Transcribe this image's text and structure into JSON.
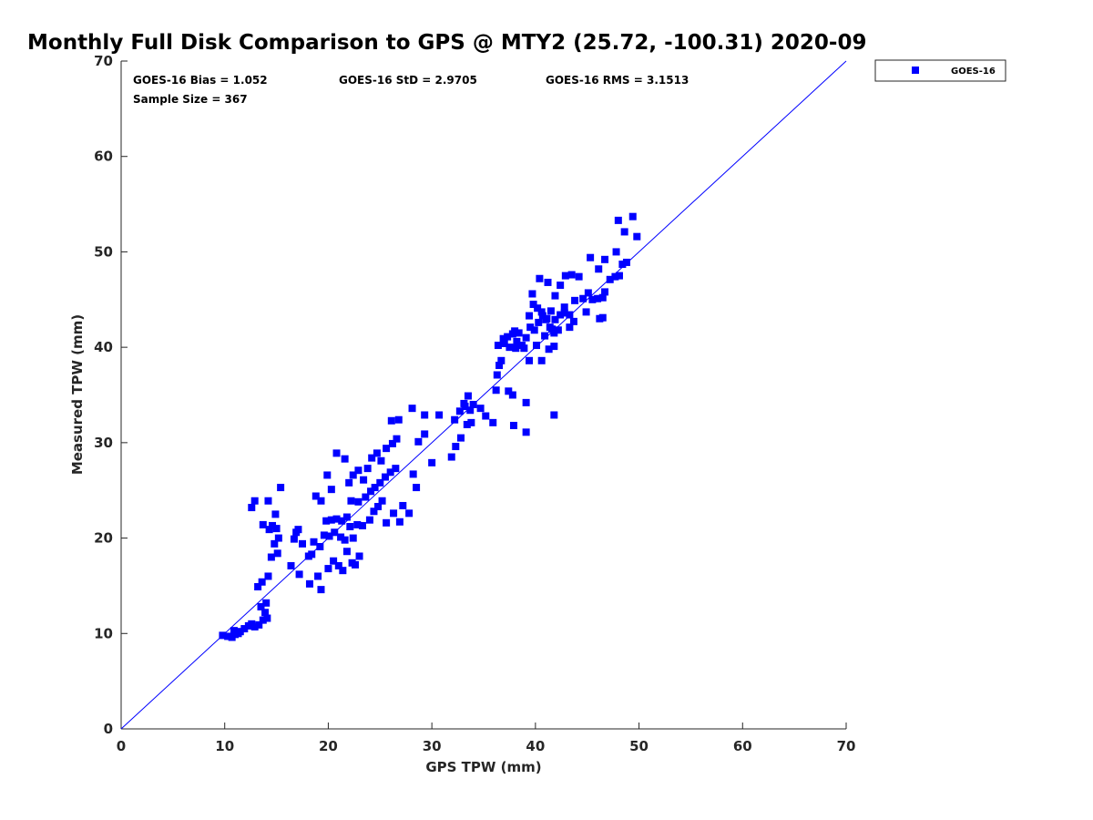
{
  "chart_data": {
    "type": "scatter",
    "title": "Monthly Full Disk Comparison to GPS @ MTY2 (25.72, -100.31) 2020-09",
    "xlabel": "GPS TPW (mm)",
    "ylabel": "Measured TPW (mm)",
    "xlim": [
      0,
      70
    ],
    "ylim": [
      0,
      70
    ],
    "xticks": [
      "0",
      "10",
      "20",
      "30",
      "40",
      "50",
      "60",
      "70"
    ],
    "yticks": [
      "0",
      "10",
      "20",
      "30",
      "40",
      "50",
      "60",
      "70"
    ],
    "grid": false,
    "legend_position": "top-right",
    "stats": {
      "bias": "GOES-16 Bias = 1.052",
      "std": "GOES-16 StD = 2.9705",
      "rms": "GOES-16 RMS = 3.1513",
      "sample": "Sample Size = 367"
    },
    "reference_line": {
      "x": [
        0,
        70
      ],
      "y": [
        0,
        70
      ],
      "color": "#0000ff"
    },
    "series": [
      {
        "name": "GOES-16",
        "color": "#0000ff",
        "marker": "square",
        "points": [
          [
            9.8,
            9.8
          ],
          [
            10.3,
            9.7
          ],
          [
            10.7,
            9.6
          ],
          [
            11.0,
            9.9
          ],
          [
            11.3,
            10.0
          ],
          [
            10.9,
            10.3
          ],
          [
            11.5,
            10.2
          ],
          [
            11.9,
            10.5
          ],
          [
            12.3,
            10.8
          ],
          [
            12.6,
            11.0
          ],
          [
            12.9,
            10.7
          ],
          [
            13.3,
            10.9
          ],
          [
            13.7,
            11.4
          ],
          [
            14.1,
            11.6
          ],
          [
            13.9,
            12.2
          ],
          [
            13.5,
            12.8
          ],
          [
            14.0,
            13.2
          ],
          [
            13.2,
            14.9
          ],
          [
            13.6,
            15.4
          ],
          [
            14.2,
            16.0
          ],
          [
            14.5,
            18.0
          ],
          [
            15.1,
            18.4
          ],
          [
            15.0,
            21.0
          ],
          [
            14.6,
            21.3
          ],
          [
            13.7,
            21.4
          ],
          [
            14.3,
            20.9
          ],
          [
            12.6,
            23.2
          ],
          [
            12.9,
            23.9
          ],
          [
            14.2,
            23.9
          ],
          [
            15.4,
            25.3
          ],
          [
            14.9,
            22.5
          ],
          [
            15.2,
            20.0
          ],
          [
            14.8,
            19.4
          ],
          [
            16.7,
            19.9
          ],
          [
            16.9,
            20.6
          ],
          [
            17.1,
            20.9
          ],
          [
            16.4,
            17.1
          ],
          [
            17.2,
            16.2
          ],
          [
            17.5,
            19.4
          ],
          [
            18.1,
            18.1
          ],
          [
            18.4,
            18.3
          ],
          [
            18.2,
            15.2
          ],
          [
            19.0,
            16.0
          ],
          [
            19.3,
            14.6
          ],
          [
            18.6,
            19.6
          ],
          [
            19.2,
            19.1
          ],
          [
            19.6,
            20.3
          ],
          [
            20.1,
            20.2
          ],
          [
            19.8,
            21.8
          ],
          [
            20.3,
            21.9
          ],
          [
            20.6,
            20.6
          ],
          [
            20.0,
            16.8
          ],
          [
            20.5,
            17.6
          ],
          [
            21.0,
            17.1
          ],
          [
            21.4,
            16.6
          ],
          [
            21.8,
            18.6
          ],
          [
            22.3,
            17.4
          ],
          [
            22.6,
            17.2
          ],
          [
            23.0,
            18.1
          ],
          [
            21.2,
            20.1
          ],
          [
            21.6,
            19.8
          ],
          [
            22.1,
            21.2
          ],
          [
            22.4,
            20.0
          ],
          [
            22.8,
            21.4
          ],
          [
            23.3,
            21.3
          ],
          [
            24.0,
            21.9
          ],
          [
            24.4,
            22.8
          ],
          [
            24.8,
            23.3
          ],
          [
            25.2,
            23.9
          ],
          [
            20.8,
            22.0
          ],
          [
            21.3,
            21.8
          ],
          [
            21.8,
            22.2
          ],
          [
            22.2,
            23.9
          ],
          [
            22.9,
            23.8
          ],
          [
            23.6,
            24.3
          ],
          [
            24.1,
            24.9
          ],
          [
            24.5,
            25.3
          ],
          [
            25.0,
            25.8
          ],
          [
            25.5,
            26.4
          ],
          [
            26.0,
            26.9
          ],
          [
            26.5,
            27.3
          ],
          [
            22.0,
            25.8
          ],
          [
            22.4,
            26.6
          ],
          [
            22.9,
            27.1
          ],
          [
            23.4,
            26.1
          ],
          [
            23.8,
            27.3
          ],
          [
            24.2,
            28.4
          ],
          [
            24.7,
            28.9
          ],
          [
            25.1,
            28.1
          ],
          [
            25.6,
            29.4
          ],
          [
            26.2,
            29.9
          ],
          [
            26.6,
            30.4
          ],
          [
            20.8,
            28.9
          ],
          [
            21.6,
            28.3
          ],
          [
            19.9,
            26.6
          ],
          [
            20.3,
            25.1
          ],
          [
            18.8,
            24.4
          ],
          [
            19.3,
            23.9
          ],
          [
            26.1,
            32.3
          ],
          [
            26.8,
            32.4
          ],
          [
            28.1,
            33.6
          ],
          [
            28.7,
            30.1
          ],
          [
            29.3,
            30.9
          ],
          [
            28.2,
            26.7
          ],
          [
            28.5,
            25.3
          ],
          [
            27.8,
            22.6
          ],
          [
            27.2,
            23.4
          ],
          [
            26.9,
            21.7
          ],
          [
            25.6,
            21.6
          ],
          [
            26.3,
            22.6
          ],
          [
            30.0,
            27.9
          ],
          [
            31.9,
            28.5
          ],
          [
            32.3,
            29.6
          ],
          [
            32.8,
            30.5
          ],
          [
            33.4,
            31.9
          ],
          [
            33.8,
            32.1
          ],
          [
            32.2,
            32.4
          ],
          [
            32.7,
            33.3
          ],
          [
            33.1,
            34.1
          ],
          [
            33.5,
            34.9
          ],
          [
            34.0,
            34.0
          ],
          [
            34.7,
            33.6
          ],
          [
            35.2,
            32.8
          ],
          [
            35.9,
            32.1
          ],
          [
            33.2,
            33.8
          ],
          [
            33.7,
            33.4
          ],
          [
            29.3,
            32.9
          ],
          [
            30.7,
            32.9
          ],
          [
            36.3,
            37.1
          ],
          [
            36.7,
            38.6
          ],
          [
            36.4,
            40.2
          ],
          [
            36.9,
            40.9
          ],
          [
            37.3,
            41.1
          ],
          [
            37.8,
            41.4
          ],
          [
            38.2,
            40.6
          ],
          [
            38.7,
            40.2
          ],
          [
            39.1,
            41.0
          ],
          [
            39.5,
            42.1
          ],
          [
            39.9,
            41.8
          ],
          [
            40.3,
            42.6
          ],
          [
            40.7,
            43.3
          ],
          [
            41.1,
            43.0
          ],
          [
            41.5,
            43.8
          ],
          [
            41.9,
            42.9
          ],
          [
            42.4,
            43.4
          ],
          [
            42.8,
            44.2
          ],
          [
            43.3,
            43.4
          ],
          [
            39.4,
            43.3
          ],
          [
            39.8,
            44.5
          ],
          [
            40.2,
            44.1
          ],
          [
            40.6,
            43.7
          ],
          [
            41.0,
            42.9
          ],
          [
            41.4,
            42.1
          ],
          [
            41.8,
            41.5
          ],
          [
            42.2,
            41.8
          ],
          [
            37.0,
            40.4
          ],
          [
            37.5,
            40.0
          ],
          [
            38.0,
            41.7
          ],
          [
            38.4,
            41.5
          ],
          [
            38.9,
            39.9
          ],
          [
            39.4,
            38.6
          ],
          [
            40.6,
            38.6
          ],
          [
            41.3,
            39.8
          ],
          [
            41.8,
            40.1
          ],
          [
            37.4,
            35.4
          ],
          [
            37.8,
            35.0
          ],
          [
            37.9,
            31.8
          ],
          [
            39.1,
            34.2
          ],
          [
            39.1,
            31.1
          ],
          [
            41.8,
            32.9
          ],
          [
            36.2,
            35.5
          ],
          [
            36.5,
            38.1
          ],
          [
            39.7,
            45.6
          ],
          [
            40.4,
            47.2
          ],
          [
            41.2,
            46.8
          ],
          [
            41.9,
            45.4
          ],
          [
            42.4,
            46.5
          ],
          [
            42.9,
            47.5
          ],
          [
            43.5,
            47.6
          ],
          [
            44.2,
            47.4
          ],
          [
            44.6,
            45.1
          ],
          [
            45.1,
            45.7
          ],
          [
            45.5,
            45.0
          ],
          [
            46.0,
            45.1
          ],
          [
            46.5,
            45.2
          ],
          [
            46.7,
            45.8
          ],
          [
            45.3,
            49.4
          ],
          [
            46.1,
            48.2
          ],
          [
            46.7,
            49.2
          ],
          [
            47.2,
            47.1
          ],
          [
            47.7,
            47.4
          ],
          [
            48.1,
            47.5
          ],
          [
            48.4,
            48.7
          ],
          [
            48.8,
            48.9
          ],
          [
            46.2,
            43.0
          ],
          [
            46.5,
            43.1
          ],
          [
            44.9,
            43.7
          ],
          [
            43.7,
            42.7
          ],
          [
            47.8,
            50.0
          ],
          [
            48.0,
            53.3
          ],
          [
            48.6,
            52.1
          ],
          [
            49.4,
            53.7
          ],
          [
            49.8,
            51.6
          ],
          [
            43.8,
            44.9
          ],
          [
            43.3,
            42.1
          ],
          [
            42.8,
            43.6
          ],
          [
            40.9,
            41.2
          ],
          [
            41.6,
            41.9
          ],
          [
            40.1,
            40.2
          ],
          [
            38.1,
            39.9
          ]
        ]
      }
    ]
  }
}
